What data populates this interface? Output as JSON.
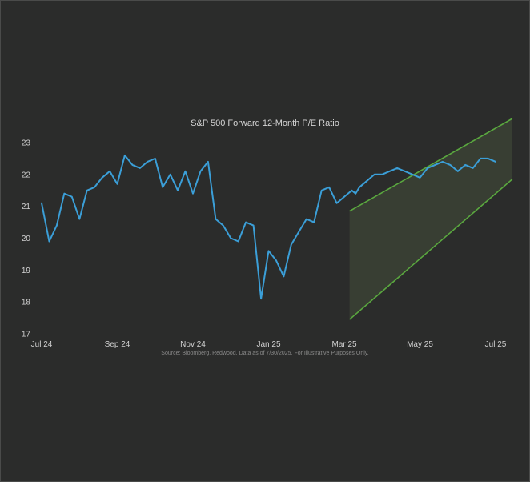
{
  "chart_data": {
    "type": "line",
    "title": "S&P 500 Forward 12-Month P/E Ratio",
    "source": "Source: Bloomberg, Redwood. Data as of 7/30/2025. For Illustrative Purposes Only.",
    "x_tick_labels": [
      "Jul 24",
      "Sep 24",
      "Nov 24",
      "Jan 25",
      "Mar 25",
      "May 25",
      "Jul 25"
    ],
    "y_ticks": [
      17,
      18,
      19,
      20,
      21,
      22,
      23
    ],
    "ylim": [
      17,
      23.6
    ],
    "grid": false,
    "legend": "none",
    "series": [
      {
        "color": "#3b9fd8",
        "x": [
          0,
          0.1,
          0.2,
          0.3,
          0.4,
          0.5,
          0.6,
          0.7,
          0.8,
          0.9,
          1.0,
          1.1,
          1.2,
          1.3,
          1.4,
          1.5,
          1.6,
          1.7,
          1.8,
          1.9,
          2.0,
          2.1,
          2.2,
          2.3,
          2.4,
          2.5,
          2.6,
          2.7,
          2.8,
          2.9,
          3.0,
          3.1,
          3.2,
          3.3,
          3.4,
          3.5,
          3.6,
          3.7,
          3.8,
          3.9,
          4.0,
          4.05,
          4.1,
          4.15,
          4.2,
          4.3,
          4.35,
          4.4,
          4.5,
          4.6,
          4.7,
          4.8,
          4.9,
          5.0,
          5.1,
          5.2,
          5.3,
          5.4,
          5.5,
          5.6,
          5.7,
          5.8,
          5.9,
          6.0
        ],
        "y": [
          21.1,
          19.9,
          20.4,
          21.4,
          21.3,
          20.6,
          21.5,
          21.6,
          21.9,
          22.1,
          21.7,
          22.6,
          22.3,
          22.2,
          22.4,
          22.5,
          21.6,
          22.0,
          21.5,
          22.1,
          21.4,
          22.1,
          22.4,
          20.6,
          20.4,
          20.0,
          19.9,
          20.5,
          20.4,
          18.1,
          19.6,
          19.3,
          18.8,
          19.8,
          20.2,
          20.6,
          20.5,
          21.5,
          21.6,
          21.1,
          21.3,
          21.4,
          21.5,
          21.4,
          21.6,
          21.8,
          21.9,
          22.0,
          22.0,
          22.1,
          22.2,
          22.1,
          22.0,
          21.9,
          22.2,
          22.3,
          22.4,
          22.3,
          22.1,
          22.3,
          22.2,
          22.5,
          22.5,
          22.4
        ]
      }
    ],
    "channel": {
      "x_start": 4.07,
      "x_end": 6.22,
      "upper_start": 20.85,
      "upper_end": 23.75,
      "lower_start": 17.45,
      "lower_end": 21.85,
      "line_color": "#5aa83f",
      "fill_color": "#3d4437"
    }
  }
}
